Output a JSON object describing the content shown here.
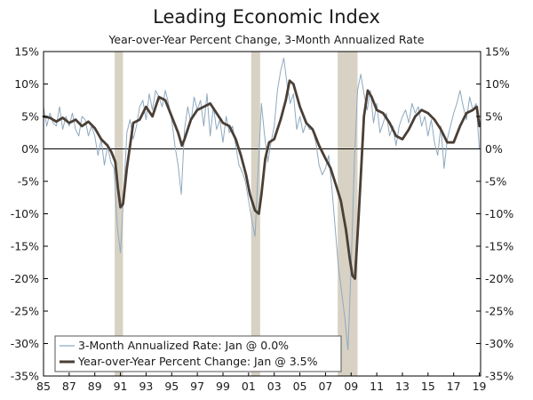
{
  "chart_data": {
    "type": "line",
    "title": "Leading Economic Index",
    "subtitle": "Year-over-Year Percent Change, 3-Month Annualized Rate",
    "xlabel": "",
    "ylabel": "",
    "xlim": [
      1985.0,
      2019.1
    ],
    "ylim": [
      -35,
      15
    ],
    "x_tick_values": [
      1985,
      1987,
      1989,
      1991,
      1993,
      1995,
      1997,
      1999,
      2001,
      2003,
      2005,
      2007,
      2009,
      2011,
      2013,
      2015,
      2017,
      2019
    ],
    "x_tick_labels": [
      "85",
      "87",
      "89",
      "91",
      "93",
      "95",
      "97",
      "99",
      "01",
      "03",
      "05",
      "07",
      "09",
      "11",
      "13",
      "15",
      "17",
      "19"
    ],
    "y_tick_values": [
      15,
      10,
      5,
      0,
      -5,
      -10,
      -15,
      -20,
      -25,
      -30,
      -35
    ],
    "y_tick_labels": [
      "15%",
      "10%",
      "5%",
      "0%",
      "-5%",
      "-10%",
      "-15%",
      "-20%",
      "-25%",
      "-30%",
      "-35%"
    ],
    "grid": false,
    "zero_line": true,
    "legend_position": "bottom-left",
    "recessions": [
      [
        1990.55,
        1991.2
      ],
      [
        2001.2,
        2001.9
      ],
      [
        2007.95,
        2009.5
      ]
    ],
    "series": [
      {
        "name": "3-Month Annualized Rate: Jan @ 0.0%",
        "color": "#8fa9bf",
        "style": "thin",
        "x": [
          1985.0,
          1985.25,
          1985.5,
          1985.75,
          1986.0,
          1986.25,
          1986.5,
          1986.75,
          1987.0,
          1987.25,
          1987.5,
          1987.75,
          1988.0,
          1988.25,
          1988.5,
          1988.75,
          1989.0,
          1989.25,
          1989.5,
          1989.75,
          1990.0,
          1990.25,
          1990.5,
          1990.75,
          1991.0,
          1991.25,
          1991.5,
          1991.75,
          1992.0,
          1992.25,
          1992.5,
          1992.75,
          1993.0,
          1993.25,
          1993.5,
          1993.75,
          1994.0,
          1994.25,
          1994.5,
          1994.75,
          1995.0,
          1995.25,
          1995.5,
          1995.75,
          1996.0,
          1996.25,
          1996.5,
          1996.75,
          1997.0,
          1997.25,
          1997.5,
          1997.75,
          1998.0,
          1998.25,
          1998.5,
          1998.75,
          1999.0,
          1999.25,
          1999.5,
          1999.75,
          2000.0,
          2000.25,
          2000.5,
          2000.75,
          2001.0,
          2001.25,
          2001.5,
          2001.75,
          2002.0,
          2002.25,
          2002.5,
          2002.75,
          2003.0,
          2003.25,
          2003.5,
          2003.75,
          2004.0,
          2004.25,
          2004.5,
          2004.75,
          2005.0,
          2005.25,
          2005.5,
          2005.75,
          2006.0,
          2006.25,
          2006.5,
          2006.75,
          2007.0,
          2007.25,
          2007.5,
          2007.75,
          2008.0,
          2008.25,
          2008.5,
          2008.75,
          2009.0,
          2009.25,
          2009.5,
          2009.75,
          2010.0,
          2010.25,
          2010.5,
          2010.75,
          2011.0,
          2011.25,
          2011.5,
          2011.75,
          2012.0,
          2012.25,
          2012.5,
          2012.75,
          2013.0,
          2013.25,
          2013.5,
          2013.75,
          2014.0,
          2014.25,
          2014.5,
          2014.75,
          2015.0,
          2015.25,
          2015.5,
          2015.75,
          2016.0,
          2016.25,
          2016.5,
          2016.75,
          2017.0,
          2017.25,
          2017.5,
          2017.75,
          2018.0,
          2018.25,
          2018.5,
          2018.75,
          2019.0
        ],
        "values": [
          6.5,
          3.5,
          5.5,
          4.0,
          3.5,
          6.5,
          3.0,
          5.0,
          3.5,
          5.5,
          3.0,
          2.0,
          5.0,
          4.5,
          2.0,
          3.5,
          2.0,
          -1.0,
          1.5,
          -2.5,
          0.5,
          -2.0,
          -3.0,
          -12.0,
          -16.0,
          -7.0,
          2.5,
          4.5,
          1.5,
          3.5,
          6.5,
          7.5,
          4.5,
          8.5,
          6.0,
          9.0,
          8.0,
          6.5,
          9.0,
          7.0,
          4.5,
          0.5,
          -2.5,
          -7.0,
          3.0,
          6.5,
          4.0,
          8.0,
          6.0,
          7.5,
          3.5,
          8.5,
          2.0,
          6.5,
          3.0,
          4.5,
          1.0,
          5.0,
          2.5,
          3.5,
          0.5,
          -2.5,
          -3.5,
          -5.0,
          -8.0,
          -11.0,
          -13.5,
          -3.0,
          7.0,
          2.0,
          -2.0,
          1.0,
          3.5,
          9.0,
          12.0,
          14.0,
          10.0,
          7.0,
          8.5,
          3.0,
          5.0,
          2.5,
          4.0,
          3.0,
          3.0,
          1.0,
          -2.5,
          -4.0,
          -3.0,
          -1.0,
          -6.0,
          -12.0,
          -18.0,
          -22.0,
          -26.0,
          -31.0,
          -18.0,
          -2.0,
          9.0,
          11.5,
          8.5,
          6.0,
          9.0,
          4.0,
          7.0,
          2.5,
          4.0,
          5.5,
          2.0,
          3.5,
          0.5,
          3.5,
          5.0,
          6.0,
          4.0,
          7.0,
          5.5,
          6.5,
          3.5,
          5.0,
          2.0,
          4.5,
          1.0,
          -1.0,
          3.5,
          -3.0,
          1.5,
          3.5,
          5.5,
          7.0,
          9.0,
          6.5,
          4.5,
          8.0,
          6.0,
          7.0,
          0.0
        ]
      },
      {
        "name": "Year-over-Year Percent Change: Jan @ 3.5%",
        "color": "#4a3f36",
        "style": "thick",
        "x": [
          1985.0,
          1985.5,
          1986.0,
          1986.5,
          1987.0,
          1987.5,
          1988.0,
          1988.5,
          1989.0,
          1989.5,
          1990.0,
          1990.3,
          1990.6,
          1990.8,
          1991.0,
          1991.2,
          1991.5,
          1992.0,
          1992.5,
          1993.0,
          1993.5,
          1994.0,
          1994.5,
          1995.0,
          1995.5,
          1995.8,
          1996.0,
          1996.5,
          1997.0,
          1997.5,
          1998.0,
          1998.5,
          1999.0,
          1999.5,
          2000.0,
          2000.4,
          2000.8,
          2001.1,
          2001.5,
          2001.8,
          2002.0,
          2002.3,
          2002.6,
          2003.0,
          2003.5,
          2003.9,
          2004.2,
          2004.5,
          2005.0,
          2005.5,
          2006.0,
          2006.5,
          2007.0,
          2007.4,
          2007.8,
          2008.2,
          2008.6,
          2008.9,
          2009.1,
          2009.3,
          2009.6,
          2010.0,
          2010.3,
          2010.6,
          2011.0,
          2011.5,
          2012.0,
          2012.5,
          2013.0,
          2013.5,
          2014.0,
          2014.5,
          2015.0,
          2015.5,
          2016.0,
          2016.5,
          2017.0,
          2017.5,
          2018.0,
          2018.5,
          2018.8,
          2019.0
        ],
        "values": [
          5.0,
          4.8,
          4.2,
          4.8,
          4.0,
          4.5,
          3.5,
          4.2,
          3.2,
          1.5,
          0.5,
          -0.5,
          -2.0,
          -6.0,
          -9.0,
          -8.5,
          -3.0,
          4.0,
          4.5,
          6.5,
          5.0,
          8.0,
          7.5,
          5.0,
          2.5,
          0.5,
          1.5,
          4.5,
          6.0,
          6.5,
          7.0,
          5.5,
          4.0,
          3.5,
          1.5,
          -1.0,
          -4.0,
          -7.0,
          -9.5,
          -10.0,
          -7.0,
          -1.5,
          1.0,
          1.5,
          4.5,
          7.5,
          10.5,
          10.0,
          6.5,
          4.0,
          3.0,
          0.5,
          -1.5,
          -3.0,
          -5.5,
          -8.0,
          -12.5,
          -17.0,
          -19.5,
          -20.0,
          -10.0,
          5.0,
          9.0,
          8.0,
          6.0,
          5.5,
          4.0,
          2.0,
          1.5,
          3.0,
          5.0,
          6.0,
          5.5,
          4.5,
          3.0,
          1.0,
          1.0,
          3.5,
          5.5,
          6.0,
          6.5,
          3.5
        ]
      }
    ]
  }
}
